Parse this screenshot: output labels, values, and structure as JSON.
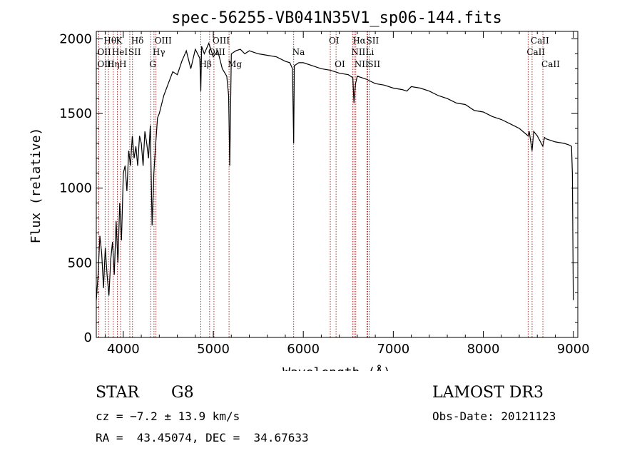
{
  "chart_data": {
    "type": "line",
    "title": "spec-56255-VB041N35V1_sp06-144.fits",
    "xlabel": "Wavelength (Å)",
    "ylabel": "Flux (relative)",
    "xlim": [
      3700,
      9050
    ],
    "ylim": [
      0,
      2050
    ],
    "xticks": [
      4000,
      5000,
      6000,
      7000,
      8000,
      9000
    ],
    "yticks": [
      0,
      500,
      1000,
      1500,
      2000
    ],
    "series": [
      {
        "name": "spectrum",
        "x": [
          3700,
          3720,
          3740,
          3760,
          3780,
          3800,
          3820,
          3840,
          3860,
          3880,
          3900,
          3920,
          3940,
          3960,
          3980,
          4000,
          4020,
          4040,
          4060,
          4080,
          4100,
          4120,
          4140,
          4160,
          4180,
          4200,
          4220,
          4240,
          4260,
          4280,
          4300,
          4320,
          4340,
          4360,
          4380,
          4400,
          4450,
          4500,
          4550,
          4600,
          4650,
          4700,
          4750,
          4800,
          4850,
          4861,
          4870,
          4900,
          4950,
          5000,
          5050,
          5100,
          5150,
          5170,
          5183,
          5200,
          5250,
          5300,
          5350,
          5400,
          5500,
          5600,
          5700,
          5800,
          5850,
          5880,
          5893,
          5900,
          5950,
          6000,
          6100,
          6200,
          6300,
          6400,
          6500,
          6550,
          6563,
          6580,
          6600,
          6700,
          6800,
          6900,
          7000,
          7100,
          7150,
          7200,
          7300,
          7400,
          7500,
          7600,
          7700,
          7800,
          7900,
          8000,
          8100,
          8200,
          8300,
          8400,
          8498,
          8510,
          8542,
          8560,
          8600,
          8662,
          8680,
          8700,
          8800,
          8900,
          8950,
          8980,
          8990,
          9000
        ],
        "values": [
          250,
          420,
          680,
          560,
          330,
          600,
          420,
          280,
          520,
          640,
          420,
          780,
          500,
          900,
          650,
          1100,
          1150,
          980,
          1250,
          1150,
          1350,
          1200,
          1280,
          1150,
          1350,
          1300,
          1150,
          1380,
          1300,
          1200,
          1420,
          750,
          1100,
          1300,
          1470,
          1500,
          1620,
          1700,
          1780,
          1760,
          1850,
          1920,
          1800,
          1930,
          1870,
          1650,
          1950,
          1900,
          1970,
          1880,
          1920,
          1800,
          1750,
          1620,
          1150,
          1900,
          1920,
          1930,
          1900,
          1920,
          1900,
          1890,
          1880,
          1850,
          1840,
          1800,
          1300,
          1820,
          1840,
          1840,
          1820,
          1800,
          1790,
          1770,
          1760,
          1740,
          1570,
          1700,
          1750,
          1730,
          1700,
          1690,
          1670,
          1660,
          1650,
          1680,
          1670,
          1650,
          1620,
          1600,
          1570,
          1560,
          1520,
          1510,
          1480,
          1460,
          1430,
          1400,
          1350,
          1380,
          1250,
          1380,
          1350,
          1280,
          1340,
          1330,
          1310,
          1300,
          1290,
          1280,
          1100,
          250
        ]
      }
    ],
    "spectral_lines": [
      {
        "name": "Hθ",
        "x": 3798,
        "row": 0
      },
      {
        "name": "OII",
        "x": 3727,
        "row": 1
      },
      {
        "name": "OIII",
        "x": 3727,
        "row": 2
      },
      {
        "name": "K",
        "x": 3934,
        "row": 0
      },
      {
        "name": "HeI",
        "x": 3889,
        "row": 1
      },
      {
        "name": "Hη",
        "x": 3835,
        "row": 2
      },
      {
        "name": "Hδ",
        "x": 4102,
        "row": 0
      },
      {
        "name": "SII",
        "x": 4072,
        "row": 1
      },
      {
        "name": "H",
        "x": 3969,
        "row": 2
      },
      {
        "name": "OIII",
        "x": 4363,
        "row": 0
      },
      {
        "name": "Hγ",
        "x": 4341,
        "row": 1
      },
      {
        "name": "G",
        "x": 4305,
        "row": 2
      },
      {
        "name": "OIII",
        "x": 5007,
        "row": 0
      },
      {
        "name": "OIII",
        "x": 4959,
        "row": 1
      },
      {
        "name": "Hβ",
        "x": 4861,
        "row": 2
      },
      {
        "name": "Mg",
        "x": 5175,
        "row": 2
      },
      {
        "name": "Na",
        "x": 5893,
        "row": 1
      },
      {
        "name": "OI",
        "x": 6300,
        "row": 0
      },
      {
        "name": "OI",
        "x": 6364,
        "row": 2
      },
      {
        "name": "Hα",
        "x": 6563,
        "row": 0
      },
      {
        "name": "NII",
        "x": 6548,
        "row": 1
      },
      {
        "name": "NII",
        "x": 6583,
        "row": 2
      },
      {
        "name": "SII",
        "x": 6716,
        "row": 0
      },
      {
        "name": "Li",
        "x": 6708,
        "row": 1
      },
      {
        "name": "SII",
        "x": 6731,
        "row": 2
      },
      {
        "name": "CaII",
        "x": 8542,
        "row": 0
      },
      {
        "name": "CaII",
        "x": 8498,
        "row": 1
      },
      {
        "name": "CaII",
        "x": 8662,
        "row": 2
      }
    ]
  },
  "info": {
    "class": "STAR",
    "subclass": "G8",
    "survey": "LAMOST DR3",
    "cz": "cz = −7.2 ± 13.9 km/s",
    "obs_date": "Obs-Date: 20121123",
    "coords": "RA =  43.45074, DEC =  34.67633"
  },
  "colors": {
    "line_marker": "#b22222",
    "spectrum": "#000000",
    "axes": "#000000"
  }
}
